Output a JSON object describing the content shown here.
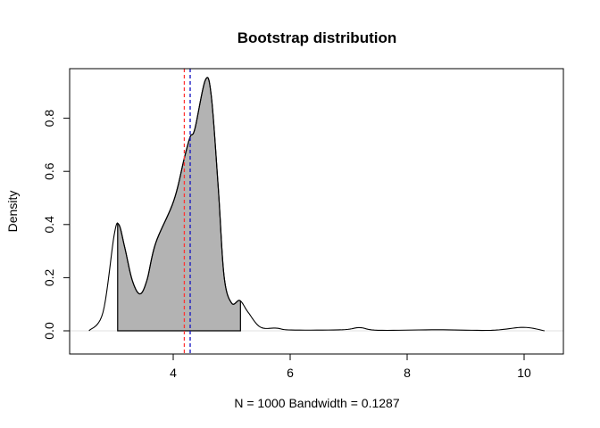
{
  "chart_data": {
    "type": "area",
    "title": "Bootstrap distribution",
    "xlabel": "N = 1000   Bandwidth = 0.1287",
    "ylabel": "Density",
    "xlim": [
      2.3,
      10.6
    ],
    "ylim": [
      -0.03,
      0.99
    ],
    "x_ticks": [
      "4",
      "6",
      "8",
      "10"
    ],
    "y_ticks": [
      "0.0",
      "0.2",
      "0.4",
      "0.6",
      "0.8"
    ],
    "grid": false,
    "density_curve": {
      "x": [
        2.56,
        2.8,
        2.99,
        3.07,
        3.17,
        3.3,
        3.43,
        3.55,
        3.7,
        4.01,
        4.19,
        4.29,
        4.37,
        4.55,
        4.65,
        4.77,
        4.87,
        5.0,
        5.14,
        5.28,
        5.49,
        5.77,
        6.02,
        6.89,
        7.19,
        7.5,
        8.52,
        9.44,
        9.99,
        10.35
      ],
      "y": [
        0.0,
        0.07,
        0.36,
        0.4,
        0.315,
        0.19,
        0.139,
        0.19,
        0.33,
        0.49,
        0.65,
        0.73,
        0.76,
        0.944,
        0.886,
        0.54,
        0.205,
        0.104,
        0.114,
        0.07,
        0.014,
        0.01,
        0.003,
        0.004,
        0.012,
        0.002,
        0.004,
        0.002,
        0.013,
        0.0
      ]
    },
    "shaded_interval": [
      3.05,
      5.15
    ],
    "shade_color": "#b3b3b3",
    "baseline_color": "#e0e0e0",
    "vlines": [
      {
        "x": 4.19,
        "color": "#ff3333",
        "style": "dashed"
      },
      {
        "x": 4.29,
        "color": "#1010c0",
        "style": "dashed"
      }
    ]
  }
}
